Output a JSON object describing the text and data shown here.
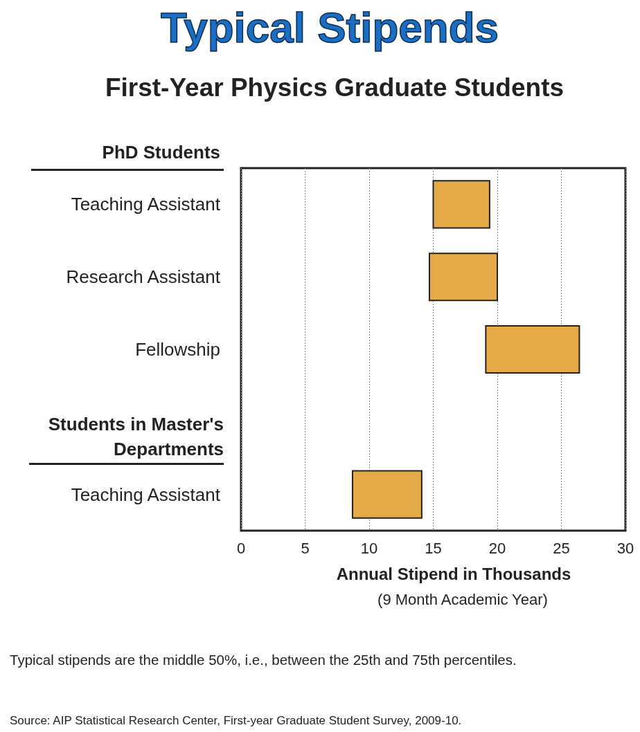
{
  "chart_data": {
    "type": "bar",
    "orientation": "horizontal",
    "title": "Typical Stipends",
    "subtitle": "First-Year Physics Graduate Students",
    "categories": [
      "Teaching Assistant",
      "Research Assistant",
      "Fellowship",
      null,
      "Teaching Assistant"
    ],
    "base": [
      15.0,
      14.7,
      19.1,
      null,
      8.7
    ],
    "values": [
      4.4,
      5.3,
      7.3,
      null,
      5.4
    ],
    "color": "#e5aa48",
    "xlim": [
      0,
      30
    ],
    "xticks": [
      0,
      5,
      10,
      15,
      20,
      25,
      30
    ],
    "grid": "x",
    "xlabel": "Annual Stipend in Thousands",
    "annotations": [
      "PhD Students",
      "Students in Master's Departments",
      "(9 Month Academic Year)",
      "Typical stipends are the middle 50%, i.e., between the 25th and 75th percentiles.",
      "Source: AIP Statistical Research Center, First-year Graduate Student Survey, 2009-10."
    ]
  }
}
